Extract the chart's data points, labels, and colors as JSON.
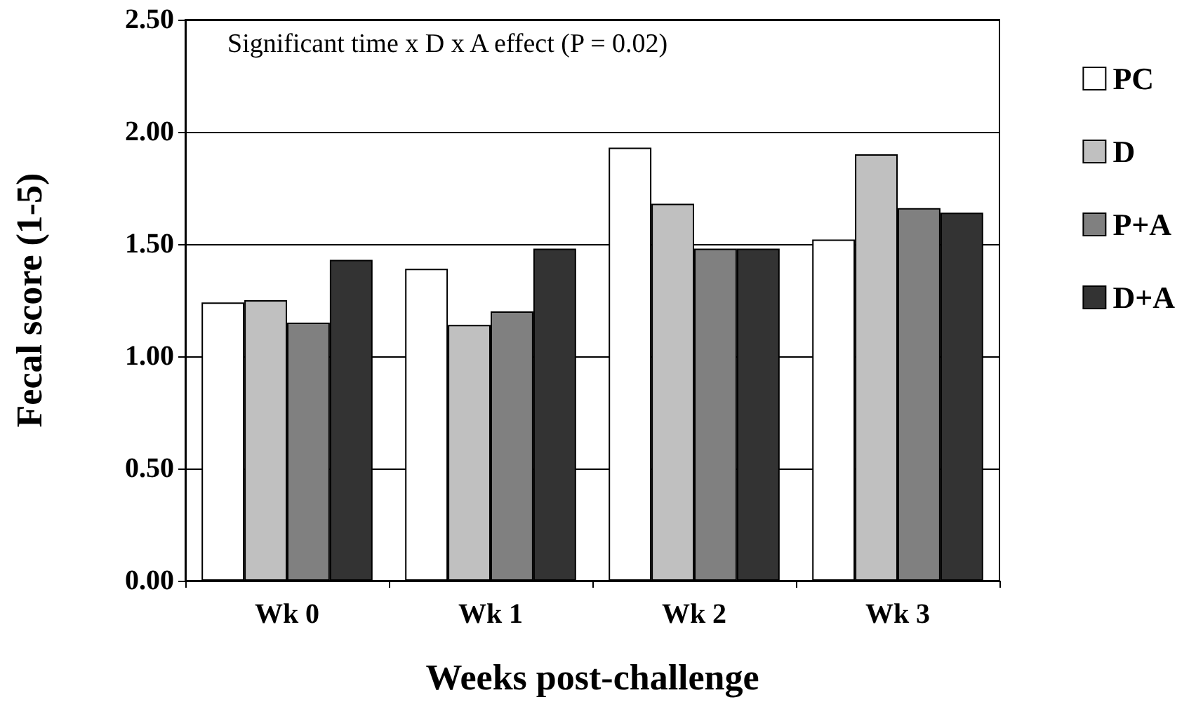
{
  "chart_data": {
    "type": "bar",
    "xlabel": "Weeks post-challenge",
    "ylabel": "Fecal score (1-5)",
    "categories": [
      "Wk 0",
      "Wk 1",
      "Wk 2",
      "Wk 3"
    ],
    "series": [
      {
        "name": "PC",
        "color": "#ffffff",
        "values": [
          1.24,
          1.39,
          1.93,
          1.52
        ]
      },
      {
        "name": "D",
        "color": "#c0c0c0",
        "values": [
          1.25,
          1.14,
          1.68,
          1.9
        ]
      },
      {
        "name": "P+A",
        "color": "#808080",
        "values": [
          1.15,
          1.2,
          1.48,
          1.66
        ]
      },
      {
        "name": "D+A",
        "color": "#333333",
        "values": [
          1.43,
          1.48,
          1.48,
          1.64
        ]
      }
    ],
    "ylim": [
      0,
      2.5
    ],
    "yticks": [
      {
        "value": 0,
        "label": "0.00"
      },
      {
        "value": 0.5,
        "label": "0.50"
      },
      {
        "value": 1,
        "label": "1.00"
      },
      {
        "value": 1.5,
        "label": "1.50"
      },
      {
        "value": 2,
        "label": "2.00"
      },
      {
        "value": 2.5,
        "label": "2.50"
      }
    ],
    "grid": "y",
    "legend": "right",
    "annotations": [
      "Significant time x D x A effect (P = 0.02)"
    ]
  }
}
